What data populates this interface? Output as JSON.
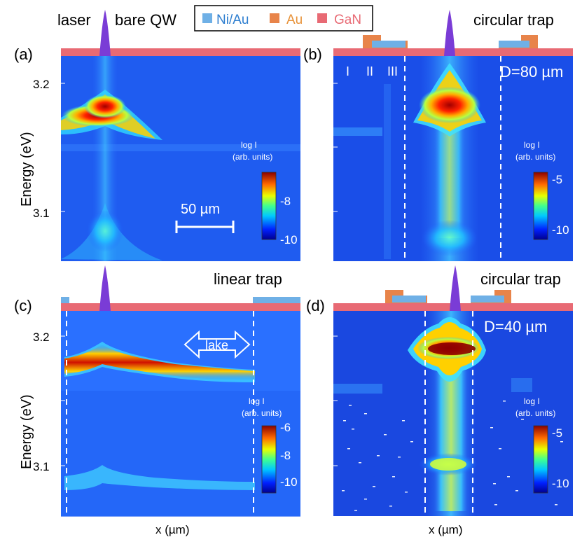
{
  "header": {
    "laser": "laser",
    "bare_qw": "bare QW",
    "legend": [
      {
        "label": "Ni/Au",
        "color": "#6fb0e6",
        "text_color": "#2f7fd0"
      },
      {
        "label": "Au",
        "color": "#e8844a",
        "text_color": "#e8933a"
      },
      {
        "label": "GaN",
        "color": "#e86a74",
        "text_color": "#e86a74"
      }
    ]
  },
  "colors": {
    "background_map": "#1f5cf0",
    "gan": "#e86a74",
    "niau": "#6fb0e6",
    "au": "#e8844a",
    "laser": "#7a3cd6"
  },
  "panels": {
    "a": {
      "letter": "(a)",
      "title": "",
      "scalebar": "50 µm",
      "colorbar_title_1": "log I",
      "colorbar_title_2": "(arb. units)",
      "colorbar_ticks": [
        "-8",
        "-10"
      ]
    },
    "b": {
      "letter": "(b)",
      "title": "circular trap",
      "diameter": "D=80 µm",
      "regions": [
        "I",
        "II",
        "III"
      ],
      "colorbar_title_1": "log I",
      "colorbar_title_2": "(arb. units)",
      "colorbar_ticks": [
        "-5",
        "-10"
      ]
    },
    "c": {
      "letter": "(c)",
      "title": "linear trap",
      "lake": "lake",
      "colorbar_title_1": "log I",
      "colorbar_title_2": "(arb. units)",
      "colorbar_ticks": [
        "-6",
        "-8",
        "-10"
      ]
    },
    "d": {
      "letter": "(d)",
      "title": "circular trap",
      "diameter": "D=40 µm",
      "colorbar_title_1": "log I",
      "colorbar_title_2": "(arb. units)",
      "colorbar_ticks": [
        "-5",
        "-10"
      ]
    }
  },
  "axes": {
    "ylabel": "Energy (eV)",
    "xlabel": "x (µm)",
    "yticks_top": [
      "3.2",
      "3.1"
    ],
    "yticks_bottom": [
      "3.2",
      "3.1"
    ]
  },
  "chart_data": [
    {
      "type": "heatmap",
      "panel": "a",
      "ylabel": "Energy (eV)",
      "yticks": [
        3.2,
        3.1
      ],
      "colorbar_label": "log I (arb. units)",
      "colorbar_ticks": [
        -8,
        -10
      ]
    },
    {
      "type": "heatmap",
      "panel": "b",
      "title": "circular trap",
      "ylabel": "",
      "colorbar_label": "log I (arb. units)",
      "colorbar_ticks": [
        -5,
        -10
      ]
    },
    {
      "type": "heatmap",
      "panel": "c",
      "title": "linear trap",
      "ylabel": "Energy (eV)",
      "xlabel": "x (µm)",
      "yticks": [
        3.2,
        3.1
      ],
      "colorbar_label": "log I (arb. units)",
      "colorbar_ticks": [
        -6,
        -8,
        -10
      ]
    },
    {
      "type": "heatmap",
      "panel": "d",
      "title": "circular trap",
      "xlabel": "x (µm)",
      "colorbar_label": "log I (arb. units)",
      "colorbar_ticks": [
        -5,
        -10
      ]
    }
  ]
}
